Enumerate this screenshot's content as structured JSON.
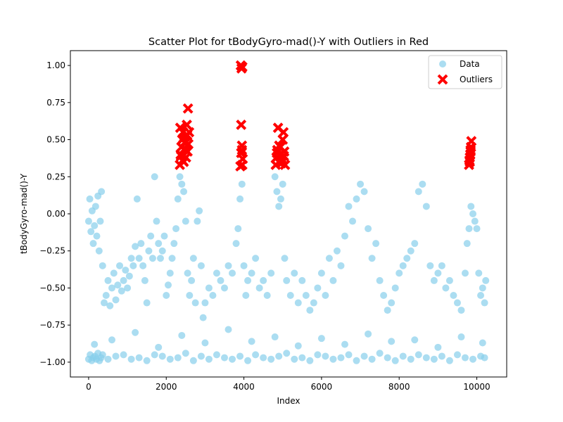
{
  "chart_data": {
    "type": "scatter",
    "title": "Scatter Plot for tBodyGyro-mad()-Y with Outliers in Red",
    "xlabel": "Index",
    "ylabel": "tBodyGyro-mad()-Y",
    "xlim": [
      -470,
      10770
    ],
    "ylim": [
      -1.1,
      1.1
    ],
    "xticks": [
      0,
      2000,
      4000,
      6000,
      8000,
      10000
    ],
    "xtick_labels": [
      "0",
      "2000",
      "4000",
      "6000",
      "8000",
      "10000"
    ],
    "yticks": [
      -1.0,
      -0.75,
      -0.5,
      -0.25,
      0.0,
      0.25,
      0.5,
      0.75,
      1.0
    ],
    "ytick_labels": [
      "−1.00",
      "−0.75",
      "−0.50",
      "−0.25",
      "0.00",
      "0.25",
      "0.50",
      "0.75",
      "1.00"
    ],
    "grid": false,
    "legend_position": "top-right",
    "series": [
      {
        "name": "Data",
        "marker": "circle",
        "color": "#87ceeb",
        "x": [
          0,
          30,
          60,
          90,
          120,
          150,
          180,
          210,
          240,
          270,
          300,
          330,
          360,
          400,
          450,
          500,
          550,
          600,
          650,
          700,
          750,
          800,
          850,
          900,
          950,
          1000,
          1050,
          1100,
          1150,
          1200,
          1250,
          1300,
          1350,
          1400,
          1450,
          1500,
          1550,
          1600,
          1650,
          1700,
          1750,
          1800,
          1850,
          1900,
          1950,
          2000,
          2050,
          2100,
          2150,
          2200,
          2250,
          2300,
          2350,
          2400,
          2450,
          2500,
          2550,
          2600,
          2650,
          2700,
          2750,
          2800,
          2850,
          2900,
          2950,
          3000,
          3100,
          3200,
          3300,
          3400,
          3500,
          3600,
          3700,
          3800,
          3850,
          3900,
          3950,
          4000,
          4050,
          4100,
          4200,
          4300,
          4400,
          4500,
          4600,
          4700,
          4800,
          4850,
          4900,
          4950,
          5000,
          5050,
          5100,
          5200,
          5300,
          5400,
          5500,
          5600,
          5700,
          5800,
          5900,
          6000,
          6100,
          6200,
          6300,
          6400,
          6500,
          6600,
          6700,
          6800,
          6900,
          7000,
          7100,
          7200,
          7300,
          7400,
          7500,
          7600,
          7700,
          7800,
          7900,
          8000,
          8100,
          8200,
          8300,
          8400,
          8500,
          8600,
          8700,
          8800,
          8900,
          9000,
          9100,
          9200,
          9300,
          9400,
          9500,
          9600,
          9700,
          9750,
          9800,
          9850,
          9900,
          9950,
          10000,
          10050,
          10100,
          10150,
          10200,
          10230,
          0,
          40,
          80,
          120,
          160,
          200,
          240,
          280,
          320,
          360,
          500,
          700,
          900,
          1100,
          1300,
          1500,
          1700,
          1900,
          2100,
          2300,
          2500,
          2700,
          2900,
          3100,
          3300,
          3500,
          3700,
          3900,
          4100,
          4300,
          4500,
          4700,
          4900,
          5100,
          5300,
          5500,
          5700,
          5900,
          6100,
          6300,
          6500,
          6700,
          6900,
          7100,
          7300,
          7500,
          7700,
          7900,
          8100,
          8300,
          8500,
          8700,
          8900,
          9100,
          9300,
          9500,
          9700,
          9900,
          10100,
          10200,
          150,
          600,
          1200,
          1800,
          2400,
          3000,
          3600,
          4200,
          4800,
          5400,
          6000,
          6600,
          7200,
          7800,
          8400,
          9000,
          9600,
          10150
        ],
        "y": [
          -0.05,
          0.1,
          -0.12,
          0.02,
          -0.2,
          -0.08,
          0.05,
          -0.15,
          0.12,
          -0.25,
          -0.05,
          0.15,
          -0.35,
          -0.6,
          -0.55,
          -0.45,
          -0.62,
          -0.5,
          -0.4,
          -0.58,
          -0.48,
          -0.35,
          -0.52,
          -0.45,
          -0.38,
          -0.5,
          -0.42,
          -0.3,
          -0.35,
          -0.22,
          0.1,
          -0.3,
          -0.2,
          -0.35,
          -0.45,
          -0.6,
          -0.25,
          -0.15,
          -0.3,
          0.25,
          -0.05,
          -0.2,
          -0.3,
          -0.25,
          -0.15,
          -0.55,
          -0.48,
          -0.4,
          -0.3,
          -0.2,
          -0.1,
          0.1,
          0.25,
          0.2,
          0.15,
          -0.05,
          -0.4,
          -0.55,
          -0.45,
          -0.3,
          -0.6,
          -0.05,
          0.02,
          -0.35,
          -0.7,
          -0.6,
          -0.5,
          -0.55,
          -0.4,
          -0.45,
          -0.5,
          -0.35,
          -0.4,
          -0.2,
          -0.1,
          0.1,
          0.2,
          -0.35,
          -0.55,
          -0.45,
          -0.4,
          -0.3,
          -0.5,
          -0.45,
          -0.55,
          -0.4,
          0.25,
          0.15,
          0.05,
          0.1,
          0.2,
          -0.3,
          -0.45,
          -0.55,
          -0.4,
          -0.6,
          -0.45,
          -0.55,
          -0.65,
          -0.6,
          -0.5,
          -0.4,
          -0.55,
          -0.3,
          -0.45,
          -0.25,
          -0.35,
          -0.15,
          0.05,
          -0.05,
          0.1,
          0.2,
          0.15,
          -0.1,
          -0.3,
          -0.2,
          -0.45,
          -0.55,
          -0.65,
          -0.6,
          -0.5,
          -0.4,
          -0.35,
          -0.3,
          -0.25,
          -0.2,
          0.15,
          0.2,
          0.05,
          -0.35,
          -0.45,
          -0.4,
          -0.35,
          -0.5,
          -0.45,
          -0.55,
          -0.6,
          -0.65,
          -0.4,
          -0.2,
          -0.1,
          0.05,
          0.0,
          -0.05,
          -0.1,
          -0.4,
          -0.55,
          -0.5,
          -0.6,
          -0.45,
          -0.98,
          -0.95,
          -0.99,
          -0.97,
          -0.96,
          -0.98,
          -0.94,
          -0.99,
          -0.97,
          -0.95,
          -0.98,
          -0.96,
          -0.95,
          -0.98,
          -0.97,
          -0.99,
          -0.95,
          -0.96,
          -0.98,
          -0.97,
          -0.94,
          -0.99,
          -0.96,
          -0.98,
          -0.95,
          -0.97,
          -0.98,
          -0.96,
          -0.99,
          -0.95,
          -0.97,
          -0.98,
          -0.96,
          -0.94,
          -0.98,
          -0.97,
          -0.99,
          -0.95,
          -0.96,
          -0.98,
          -0.97,
          -0.95,
          -0.99,
          -0.96,
          -0.98,
          -0.94,
          -0.97,
          -0.99,
          -0.96,
          -0.98,
          -0.95,
          -0.97,
          -0.98,
          -0.96,
          -0.99,
          -0.95,
          -0.97,
          -0.98,
          -0.96,
          -0.97,
          -0.88,
          -0.85,
          -0.8,
          -0.9,
          -0.82,
          -0.87,
          -0.78,
          -0.86,
          -0.83,
          -0.89,
          -0.84,
          -0.88,
          -0.81,
          -0.86,
          -0.85,
          -0.9,
          -0.83,
          -0.87
        ]
      },
      {
        "name": "Outliers",
        "marker": "x",
        "color": "#ff0000",
        "x": [
          2350,
          2370,
          2390,
          2410,
          2430,
          2450,
          2470,
          2490,
          2510,
          2530,
          2550,
          2570,
          2590,
          2360,
          2420,
          2480,
          2540,
          2380,
          2440,
          2500,
          2560,
          3910,
          3930,
          3950,
          3970,
          3920,
          3940,
          3960,
          3930,
          3950,
          3960,
          4820,
          4840,
          4860,
          4880,
          4900,
          4920,
          4940,
          4960,
          4980,
          5000,
          5020,
          5040,
          5060,
          4850,
          4910,
          4970,
          5030,
          9800,
          9820,
          9840,
          9860,
          9810,
          9830,
          9850,
          9820,
          9840
        ],
        "y": [
          0.33,
          0.4,
          0.45,
          0.5,
          0.55,
          0.35,
          0.48,
          0.52,
          0.38,
          0.6,
          0.42,
          0.47,
          0.55,
          0.58,
          0.36,
          0.44,
          0.53,
          0.39,
          0.51,
          0.43,
          0.71,
          0.32,
          0.41,
          0.46,
          0.37,
          1.0,
          0.98,
          0.99,
          0.6,
          0.43,
          0.33,
          0.33,
          0.38,
          0.43,
          0.58,
          0.35,
          0.4,
          0.45,
          0.34,
          0.37,
          0.5,
          0.55,
          0.42,
          0.33,
          0.41,
          0.46,
          0.37,
          0.39,
          0.33,
          0.38,
          0.43,
          0.49,
          0.36,
          0.4,
          0.45,
          0.35,
          0.42
        ]
      }
    ]
  }
}
